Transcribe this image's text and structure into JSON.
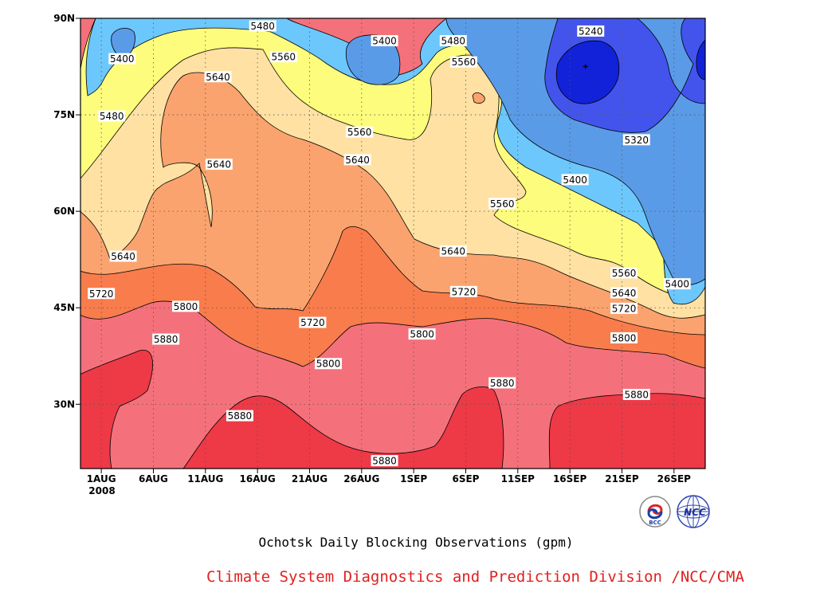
{
  "chart_data": {
    "type": "contour",
    "title": "",
    "caption": "Ochotsk Daily Blocking Observations (gpm)",
    "credit": "Climate System Diagnostics and Prediction Division /NCC/CMA",
    "x_axis": {
      "ticks": [
        "1AUG",
        "6AUG",
        "11AUG",
        "16AUG",
        "21AUG",
        "26AUG",
        "1SEP",
        "6SEP",
        "11SEP",
        "16SEP",
        "21SEP",
        "26SEP"
      ],
      "year_label": "2008",
      "range_days": [
        -2,
        58
      ]
    },
    "y_axis": {
      "ticks": [
        "30N",
        "45N",
        "60N",
        "75N",
        "90N"
      ],
      "tick_values": [
        30,
        45,
        60,
        75,
        90
      ],
      "range": [
        20,
        90
      ]
    },
    "levels": [
      5240,
      5320,
      5400,
      5480,
      5560,
      5640,
      5720,
      5800,
      5880
    ],
    "colors": {
      "5880": "#ee3947",
      "5800": "#f4717b",
      "5720": "#f97c4c",
      "5640": "#fba36e",
      "5560": "#ffe1a3",
      "5480": "#fdfc7c",
      "5400": "#6cc7fc",
      "5320": "#5a9be8",
      "5240": "#4354ec",
      "below": "#1122d8"
    },
    "contour_labels": [
      {
        "text": "5480",
        "day": 15.5,
        "lat": 88.7
      },
      {
        "text": "5400",
        "day": 2,
        "lat": 83.6
      },
      {
        "text": "5400",
        "day": 27.2,
        "lat": 86.4
      },
      {
        "text": "5480",
        "day": 33.8,
        "lat": 86.4
      },
      {
        "text": "5240",
        "day": 47,
        "lat": 87.9
      },
      {
        "text": "5560",
        "day": 17.5,
        "lat": 83.9
      },
      {
        "text": "5560",
        "day": 34.8,
        "lat": 83.1
      },
      {
        "text": "5640",
        "day": 11.2,
        "lat": 80.8
      },
      {
        "text": "5480",
        "day": 1,
        "lat": 74.7
      },
      {
        "text": "5320",
        "day": 51.4,
        "lat": 71.0
      },
      {
        "text": "5560",
        "day": 24.8,
        "lat": 72.2
      },
      {
        "text": "5640",
        "day": 11.3,
        "lat": 67.2
      },
      {
        "text": "5640",
        "day": 24.6,
        "lat": 67.9
      },
      {
        "text": "5400",
        "day": 45.5,
        "lat": 64.8
      },
      {
        "text": "5560",
        "day": 38.5,
        "lat": 61.1
      },
      {
        "text": "5640",
        "day": 2.1,
        "lat": 52.9
      },
      {
        "text": "5640",
        "day": 33.8,
        "lat": 53.7
      },
      {
        "text": "5560",
        "day": 50.2,
        "lat": 50.3
      },
      {
        "text": "5400",
        "day": 55.3,
        "lat": 48.6
      },
      {
        "text": "5720",
        "day": 0,
        "lat": 47.1
      },
      {
        "text": "5720",
        "day": 34.8,
        "lat": 47.4
      },
      {
        "text": "5640",
        "day": 50.2,
        "lat": 47.2
      },
      {
        "text": "5800",
        "day": 8.1,
        "lat": 45.1
      },
      {
        "text": "5720",
        "day": 20.3,
        "lat": 42.6
      },
      {
        "text": "5720",
        "day": 50.2,
        "lat": 44.8
      },
      {
        "text": "5880",
        "day": 6.2,
        "lat": 40.0
      },
      {
        "text": "5800",
        "day": 30.8,
        "lat": 40.8
      },
      {
        "text": "5800",
        "day": 50.2,
        "lat": 40.2
      },
      {
        "text": "5800",
        "day": 21.8,
        "lat": 36.2
      },
      {
        "text": "5880",
        "day": 38.5,
        "lat": 33.2
      },
      {
        "text": "5880",
        "day": 51.4,
        "lat": 31.4
      },
      {
        "text": "5880",
        "day": 13.3,
        "lat": 28.1
      },
      {
        "text": "5880",
        "day": 27.2,
        "lat": 21.1
      }
    ]
  },
  "logos": {
    "left": "BCC",
    "right": "NCC",
    "left_icon": "bcc-logo-icon",
    "right_icon": "ncc-logo-icon"
  }
}
